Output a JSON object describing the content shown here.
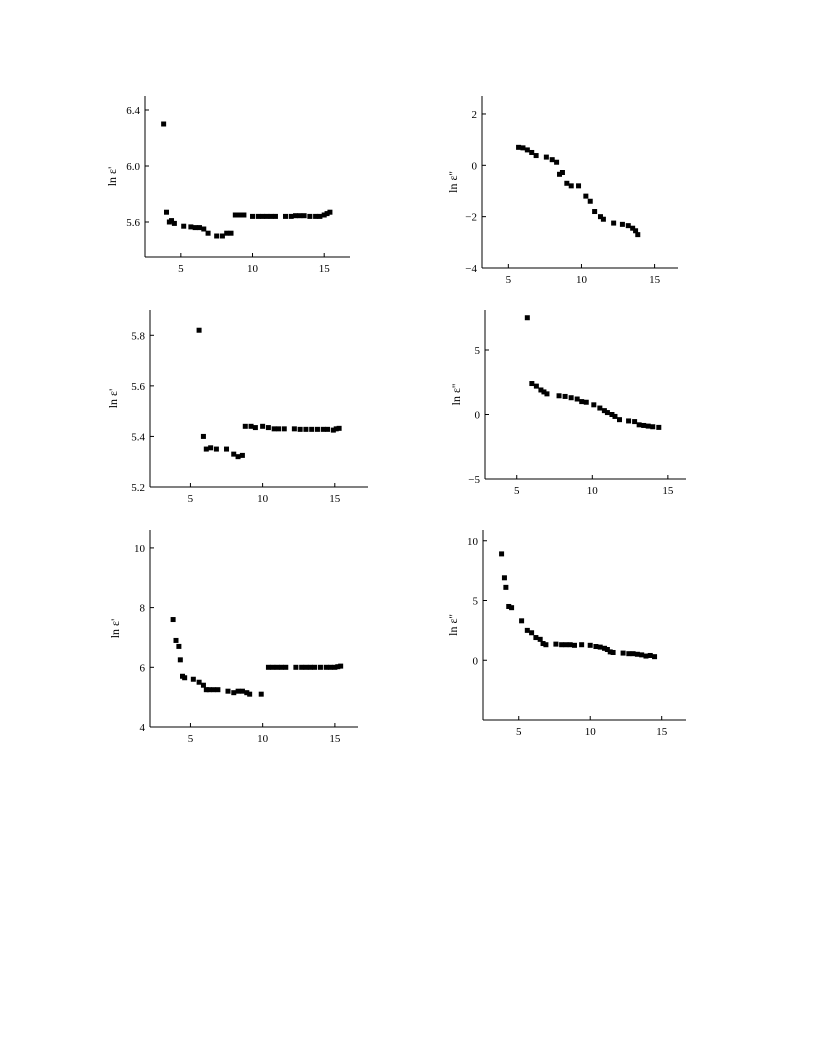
{
  "chart_data": [
    {
      "type": "scatter",
      "title": "",
      "ylabel": "ln ε'",
      "xlabel": "",
      "xlim": [
        2.5,
        16.8
      ],
      "ylim": [
        5.35,
        6.5
      ],
      "xticks": [
        5,
        10,
        15
      ],
      "yticks": [
        5.6,
        6.0,
        6.4
      ],
      "ytick_labels": [
        "5.6",
        "6.0",
        "6.4"
      ],
      "grid": false,
      "points": [
        [
          3.8,
          6.3
        ],
        [
          4.0,
          5.67
        ],
        [
          4.2,
          5.6
        ],
        [
          4.35,
          5.61
        ],
        [
          4.55,
          5.59
        ],
        [
          5.2,
          5.57
        ],
        [
          5.7,
          5.565
        ],
        [
          6.0,
          5.56
        ],
        [
          6.3,
          5.56
        ],
        [
          6.6,
          5.55
        ],
        [
          6.9,
          5.52
        ],
        [
          7.5,
          5.5
        ],
        [
          7.9,
          5.5
        ],
        [
          8.2,
          5.52
        ],
        [
          8.5,
          5.52
        ],
        [
          8.8,
          5.65
        ],
        [
          9.1,
          5.65
        ],
        [
          9.4,
          5.65
        ],
        [
          10.0,
          5.64
        ],
        [
          10.4,
          5.64
        ],
        [
          10.7,
          5.64
        ],
        [
          11.0,
          5.64
        ],
        [
          11.3,
          5.64
        ],
        [
          11.6,
          5.64
        ],
        [
          12.3,
          5.64
        ],
        [
          12.7,
          5.64
        ],
        [
          13.0,
          5.645
        ],
        [
          13.3,
          5.645
        ],
        [
          13.6,
          5.645
        ],
        [
          14.0,
          5.64
        ],
        [
          14.4,
          5.64
        ],
        [
          14.7,
          5.64
        ],
        [
          15.0,
          5.65
        ],
        [
          15.2,
          5.66
        ],
        [
          15.4,
          5.67
        ]
      ]
    },
    {
      "type": "scatter",
      "title": "",
      "ylabel": "ln ε''",
      "xlabel": "",
      "xlim": [
        3.2,
        16.6
      ],
      "ylim": [
        -4,
        2.7
      ],
      "xticks": [
        5,
        10,
        15
      ],
      "yticks": [
        -4,
        -2,
        0,
        2
      ],
      "ytick_labels": [
        "−4",
        "−2",
        "0",
        "2"
      ],
      "grid": false,
      "points": [
        [
          5.7,
          0.7
        ],
        [
          6.0,
          0.68
        ],
        [
          6.3,
          0.6
        ],
        [
          6.6,
          0.5
        ],
        [
          6.9,
          0.38
        ],
        [
          7.6,
          0.32
        ],
        [
          8.0,
          0.22
        ],
        [
          8.3,
          0.12
        ],
        [
          8.5,
          -0.35
        ],
        [
          8.7,
          -0.28
        ],
        [
          9.0,
          -0.7
        ],
        [
          9.3,
          -0.8
        ],
        [
          9.8,
          -0.8
        ],
        [
          10.3,
          -1.2
        ],
        [
          10.6,
          -1.4
        ],
        [
          10.9,
          -1.8
        ],
        [
          11.3,
          -2.0
        ],
        [
          11.5,
          -2.1
        ],
        [
          12.2,
          -2.25
        ],
        [
          12.8,
          -2.3
        ],
        [
          13.2,
          -2.35
        ],
        [
          13.5,
          -2.45
        ],
        [
          13.7,
          -2.55
        ],
        [
          13.85,
          -2.7
        ]
      ]
    },
    {
      "type": "scatter",
      "title": "",
      "ylabel": "ln ε'",
      "xlabel": "",
      "xlim": [
        2.2,
        17.3
      ],
      "ylim": [
        5.2,
        5.9
      ],
      "xticks": [
        5,
        10,
        15
      ],
      "yticks": [
        5.2,
        5.4,
        5.6,
        5.8
      ],
      "ytick_labels": [
        "5.2",
        "5.4",
        "5.6",
        "5.8"
      ],
      "grid": false,
      "points": [
        [
          5.6,
          5.82
        ],
        [
          5.9,
          5.4
        ],
        [
          6.1,
          5.35
        ],
        [
          6.4,
          5.355
        ],
        [
          6.8,
          5.35
        ],
        [
          7.5,
          5.35
        ],
        [
          8.0,
          5.33
        ],
        [
          8.3,
          5.32
        ],
        [
          8.6,
          5.325
        ],
        [
          8.8,
          5.44
        ],
        [
          9.2,
          5.44
        ],
        [
          9.5,
          5.435
        ],
        [
          10.0,
          5.44
        ],
        [
          10.4,
          5.435
        ],
        [
          10.8,
          5.43
        ],
        [
          11.1,
          5.43
        ],
        [
          11.5,
          5.43
        ],
        [
          12.2,
          5.43
        ],
        [
          12.6,
          5.428
        ],
        [
          13.0,
          5.428
        ],
        [
          13.4,
          5.428
        ],
        [
          13.8,
          5.428
        ],
        [
          14.2,
          5.428
        ],
        [
          14.5,
          5.428
        ],
        [
          14.9,
          5.425
        ],
        [
          15.1,
          5.43
        ],
        [
          15.3,
          5.432
        ]
      ]
    },
    {
      "type": "scatter",
      "title": "",
      "ylabel": "ln ε''",
      "xlabel": "",
      "xlim": [
        2.9,
        16.2
      ],
      "ylim": [
        -5,
        8.1
      ],
      "xticks": [
        5,
        10,
        15
      ],
      "yticks": [
        -5,
        0,
        5
      ],
      "ytick_labels": [
        "−5",
        "0",
        "5"
      ],
      "grid": false,
      "points": [
        [
          5.7,
          7.5
        ],
        [
          6.0,
          2.4
        ],
        [
          6.3,
          2.2
        ],
        [
          6.6,
          1.9
        ],
        [
          6.8,
          1.75
        ],
        [
          7.0,
          1.6
        ],
        [
          7.8,
          1.45
        ],
        [
          8.2,
          1.4
        ],
        [
          8.6,
          1.3
        ],
        [
          9.0,
          1.2
        ],
        [
          9.3,
          1.0
        ],
        [
          9.6,
          0.95
        ],
        [
          10.1,
          0.75
        ],
        [
          10.5,
          0.5
        ],
        [
          10.8,
          0.3
        ],
        [
          11.0,
          0.15
        ],
        [
          11.3,
          0.0
        ],
        [
          11.5,
          -0.15
        ],
        [
          11.8,
          -0.4
        ],
        [
          12.4,
          -0.5
        ],
        [
          12.8,
          -0.55
        ],
        [
          13.1,
          -0.8
        ],
        [
          13.4,
          -0.85
        ],
        [
          13.7,
          -0.9
        ],
        [
          14.0,
          -0.95
        ],
        [
          14.4,
          -1.0
        ]
      ]
    },
    {
      "type": "scatter",
      "title": "",
      "ylabel": "ln ε'",
      "xlabel": "",
      "xlim": [
        2.2,
        16.6
      ],
      "ylim": [
        4,
        10.6
      ],
      "xticks": [
        5,
        10,
        15
      ],
      "yticks": [
        4,
        6,
        8,
        10
      ],
      "ytick_labels": [
        "4",
        "6",
        "8",
        "10"
      ],
      "grid": false,
      "points": [
        [
          3.8,
          7.6
        ],
        [
          4.0,
          6.9
        ],
        [
          4.2,
          6.7
        ],
        [
          4.3,
          6.25
        ],
        [
          4.45,
          5.7
        ],
        [
          4.6,
          5.65
        ],
        [
          5.2,
          5.6
        ],
        [
          5.6,
          5.5
        ],
        [
          5.9,
          5.4
        ],
        [
          6.1,
          5.25
        ],
        [
          6.3,
          5.25
        ],
        [
          6.6,
          5.25
        ],
        [
          6.9,
          5.25
        ],
        [
          7.6,
          5.2
        ],
        [
          8.0,
          5.15
        ],
        [
          8.3,
          5.2
        ],
        [
          8.6,
          5.2
        ],
        [
          8.9,
          5.15
        ],
        [
          9.1,
          5.1
        ],
        [
          9.9,
          5.1
        ],
        [
          10.4,
          6.0
        ],
        [
          10.7,
          6.0
        ],
        [
          11.0,
          6.0
        ],
        [
          11.3,
          6.0
        ],
        [
          11.6,
          6.0
        ],
        [
          12.3,
          6.0
        ],
        [
          12.7,
          6.0
        ],
        [
          13.0,
          6.0
        ],
        [
          13.3,
          6.0
        ],
        [
          13.6,
          6.0
        ],
        [
          14.0,
          6.0
        ],
        [
          14.4,
          6.0
        ],
        [
          14.7,
          6.0
        ],
        [
          15.0,
          6.0
        ],
        [
          15.2,
          6.02
        ],
        [
          15.4,
          6.04
        ]
      ]
    },
    {
      "type": "scatter",
      "title": "",
      "ylabel": "ln ε''",
      "xlabel": "",
      "xlim": [
        2.5,
        16.7
      ],
      "ylim": [
        -5,
        10.9
      ],
      "xticks": [
        5,
        10,
        15
      ],
      "yticks": [
        0,
        5,
        10
      ],
      "ytick_labels": [
        "0",
        "5",
        "10"
      ],
      "grid": false,
      "points": [
        [
          3.8,
          8.9
        ],
        [
          4.0,
          6.9
        ],
        [
          4.1,
          6.1
        ],
        [
          4.3,
          4.5
        ],
        [
          4.5,
          4.4
        ],
        [
          5.2,
          3.3
        ],
        [
          5.6,
          2.5
        ],
        [
          5.9,
          2.3
        ],
        [
          6.2,
          1.9
        ],
        [
          6.5,
          1.75
        ],
        [
          6.7,
          1.4
        ],
        [
          6.9,
          1.3
        ],
        [
          7.6,
          1.35
        ],
        [
          8.0,
          1.3
        ],
        [
          8.3,
          1.3
        ],
        [
          8.6,
          1.3
        ],
        [
          8.9,
          1.25
        ],
        [
          9.4,
          1.3
        ],
        [
          10.0,
          1.25
        ],
        [
          10.4,
          1.15
        ],
        [
          10.7,
          1.1
        ],
        [
          11.0,
          1.0
        ],
        [
          11.2,
          0.9
        ],
        [
          11.4,
          0.7
        ],
        [
          11.6,
          0.65
        ],
        [
          12.3,
          0.6
        ],
        [
          12.7,
          0.55
        ],
        [
          13.0,
          0.55
        ],
        [
          13.3,
          0.5
        ],
        [
          13.6,
          0.45
        ],
        [
          13.9,
          0.35
        ],
        [
          14.2,
          0.4
        ],
        [
          14.5,
          0.3
        ]
      ]
    }
  ]
}
